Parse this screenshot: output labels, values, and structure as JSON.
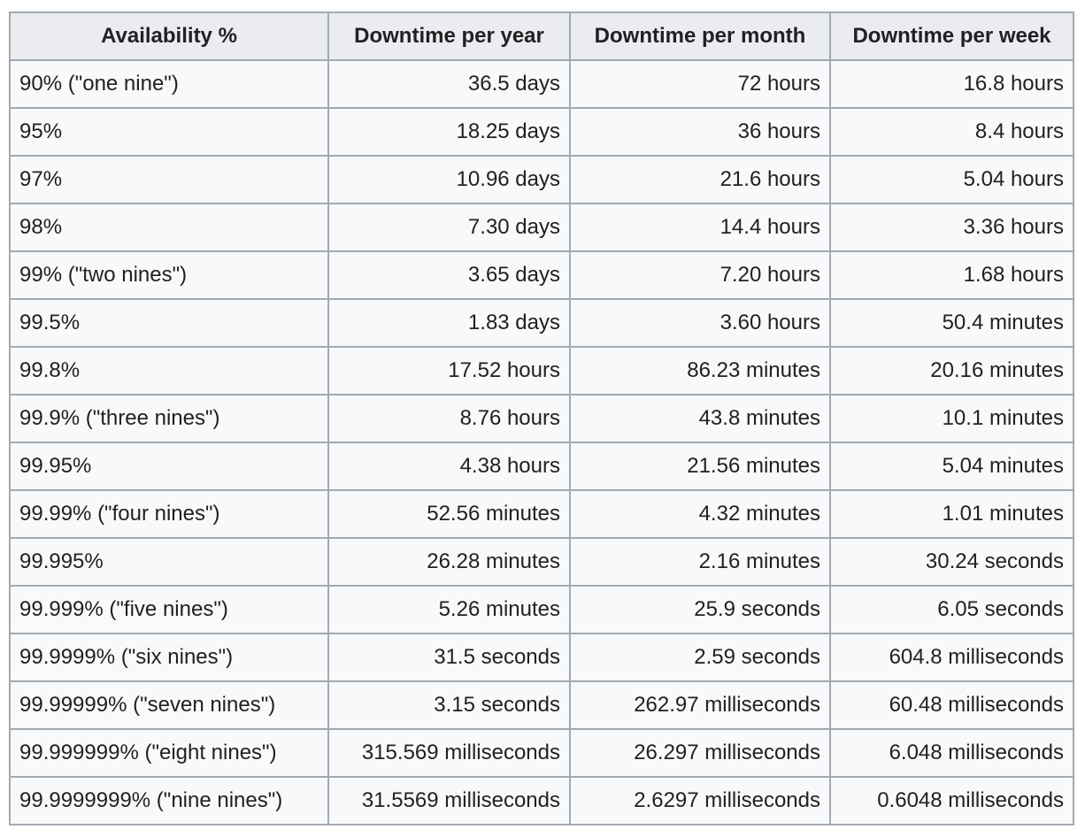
{
  "chart_data": {
    "type": "table",
    "columns": [
      "Availability %",
      "Downtime per year",
      "Downtime per month",
      "Downtime per week"
    ],
    "rows": [
      [
        "90% (\"one nine\")",
        "36.5 days",
        "72 hours",
        "16.8 hours"
      ],
      [
        "95%",
        "18.25 days",
        "36 hours",
        "8.4 hours"
      ],
      [
        "97%",
        "10.96 days",
        "21.6 hours",
        "5.04 hours"
      ],
      [
        "98%",
        "7.30 days",
        "14.4 hours",
        "3.36 hours"
      ],
      [
        "99% (\"two nines\")",
        "3.65 days",
        "7.20 hours",
        "1.68 hours"
      ],
      [
        "99.5%",
        "1.83 days",
        "3.60 hours",
        "50.4 minutes"
      ],
      [
        "99.8%",
        "17.52 hours",
        "86.23 minutes",
        "20.16 minutes"
      ],
      [
        "99.9% (\"three nines\")",
        "8.76 hours",
        "43.8 minutes",
        "10.1 minutes"
      ],
      [
        "99.95%",
        "4.38 hours",
        "21.56 minutes",
        "5.04 minutes"
      ],
      [
        "99.99% (\"four nines\")",
        "52.56 minutes",
        "4.32 minutes",
        "1.01 minutes"
      ],
      [
        "99.995%",
        "26.28 minutes",
        "2.16 minutes",
        "30.24 seconds"
      ],
      [
        "99.999% (\"five nines\")",
        "5.26 minutes",
        "25.9 seconds",
        "6.05 seconds"
      ],
      [
        "99.9999% (\"six nines\")",
        "31.5 seconds",
        "2.59 seconds",
        "604.8 milliseconds"
      ],
      [
        "99.99999% (\"seven nines\")",
        "3.15 seconds",
        "262.97 milliseconds",
        "60.48 milliseconds"
      ],
      [
        "99.999999% (\"eight nines\")",
        "315.569 milliseconds",
        "26.297 milliseconds",
        "6.048 milliseconds"
      ],
      [
        "99.9999999% (\"nine nines\")",
        "31.5569 milliseconds",
        "2.6297 milliseconds",
        "0.6048 milliseconds"
      ]
    ],
    "colors": {
      "header_bg": "#eaecf0",
      "cell_bg": "#f8f9fa",
      "border": "#a2a9b1",
      "text": "#202122"
    },
    "layout": {
      "grid": "on",
      "first_column_align": "left",
      "value_columns_align": "right"
    }
  }
}
